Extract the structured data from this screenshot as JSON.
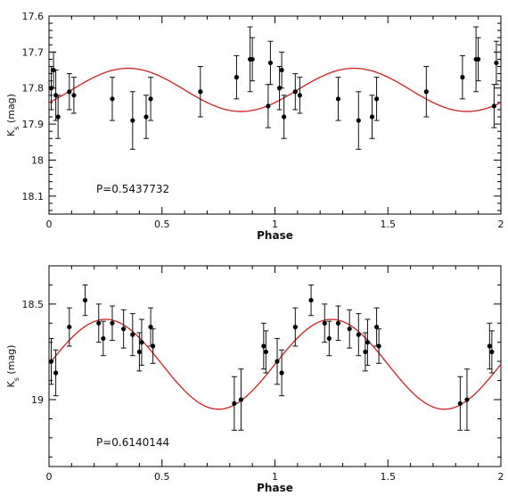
{
  "chart_data": [
    {
      "type": "scatter",
      "annotation": "P=0.5437732",
      "xlabel": "Phase",
      "ylabel": "K_s (mag)",
      "ylabel_main": "K",
      "ylabel_sub": "s",
      "ylabel_unit": " (mag)",
      "xlim": [
        0,
        2
      ],
      "ylim": [
        17.6,
        18.15
      ],
      "y_inverted": true,
      "x_ticks": [
        "0",
        "0.5",
        "1",
        "1.5",
        "2"
      ],
      "y_ticks": [
        "17.6",
        "17.7",
        "17.8",
        "17.9",
        "18",
        "18.1"
      ],
      "fit_curve": {
        "mean": 17.805,
        "amplitude": 0.06,
        "phase_of_minimum": 0.85,
        "color": "#cc2222"
      },
      "series": [
        {
          "points": [
            {
              "x": 0.01,
              "y": 17.8,
              "err": 0.06
            },
            {
              "x": 0.02,
              "y": 17.75,
              "err": 0.05
            },
            {
              "x": 0.03,
              "y": 17.82,
              "err": 0.07
            },
            {
              "x": 0.04,
              "y": 17.88,
              "err": 0.06
            },
            {
              "x": 0.09,
              "y": 17.81,
              "err": 0.05
            },
            {
              "x": 0.11,
              "y": 17.82,
              "err": 0.05
            },
            {
              "x": 0.28,
              "y": 17.83,
              "err": 0.06
            },
            {
              "x": 0.37,
              "y": 17.89,
              "err": 0.08
            },
            {
              "x": 0.43,
              "y": 17.88,
              "err": 0.06
            },
            {
              "x": 0.45,
              "y": 17.83,
              "err": 0.06
            },
            {
              "x": 0.67,
              "y": 17.81,
              "err": 0.07
            },
            {
              "x": 0.83,
              "y": 17.77,
              "err": 0.06
            },
            {
              "x": 0.89,
              "y": 17.72,
              "err": 0.09
            },
            {
              "x": 0.9,
              "y": 17.72,
              "err": 0.06
            },
            {
              "x": 0.97,
              "y": 17.85,
              "err": 0.06
            },
            {
              "x": 0.98,
              "y": 17.73,
              "err": 0.06
            },
            {
              "x": 1.02,
              "y": 17.8,
              "err": 0.06
            },
            {
              "x": 1.03,
              "y": 17.75,
              "err": 0.05
            },
            {
              "x": 1.04,
              "y": 17.88,
              "err": 0.06
            },
            {
              "x": 1.09,
              "y": 17.81,
              "err": 0.05
            },
            {
              "x": 1.11,
              "y": 17.82,
              "err": 0.05
            },
            {
              "x": 1.28,
              "y": 17.83,
              "err": 0.06
            },
            {
              "x": 1.37,
              "y": 17.89,
              "err": 0.08
            },
            {
              "x": 1.43,
              "y": 17.88,
              "err": 0.06
            },
            {
              "x": 1.45,
              "y": 17.83,
              "err": 0.06
            },
            {
              "x": 1.67,
              "y": 17.81,
              "err": 0.07
            },
            {
              "x": 1.83,
              "y": 17.77,
              "err": 0.06
            },
            {
              "x": 1.89,
              "y": 17.72,
              "err": 0.09
            },
            {
              "x": 1.9,
              "y": 17.72,
              "err": 0.06
            },
            {
              "x": 1.97,
              "y": 17.85,
              "err": 0.06
            },
            {
              "x": 1.98,
              "y": 17.73,
              "err": 0.06
            }
          ]
        }
      ]
    },
    {
      "type": "scatter",
      "annotation": "P=0.6140144",
      "xlabel": "Phase",
      "ylabel": "K_s (mag)",
      "ylabel_main": "K",
      "ylabel_sub": "s",
      "ylabel_unit": " (mag)",
      "xlim": [
        0,
        2
      ],
      "ylim": [
        18.3,
        19.35
      ],
      "y_inverted": true,
      "x_ticks": [
        "0",
        "0.5",
        "1",
        "1.5",
        "2"
      ],
      "y_ticks": [
        "18.5",
        "19"
      ],
      "fit_curve": {
        "mean": 18.815,
        "amplitude": 0.235,
        "phase_of_minimum": 0.75,
        "color": "#cc2222"
      },
      "series": [
        {
          "points": [
            {
              "x": 0.01,
              "y": 18.8,
              "err": 0.12
            },
            {
              "x": 0.03,
              "y": 18.86,
              "err": 0.12
            },
            {
              "x": 0.09,
              "y": 18.62,
              "err": 0.1
            },
            {
              "x": 0.16,
              "y": 18.48,
              "err": 0.08
            },
            {
              "x": 0.22,
              "y": 18.6,
              "err": 0.1
            },
            {
              "x": 0.24,
              "y": 18.68,
              "err": 0.09
            },
            {
              "x": 0.28,
              "y": 18.6,
              "err": 0.09
            },
            {
              "x": 0.33,
              "y": 18.63,
              "err": 0.1
            },
            {
              "x": 0.37,
              "y": 18.66,
              "err": 0.11
            },
            {
              "x": 0.4,
              "y": 18.75,
              "err": 0.1
            },
            {
              "x": 0.41,
              "y": 18.7,
              "err": 0.12
            },
            {
              "x": 0.45,
              "y": 18.62,
              "err": 0.1
            },
            {
              "x": 0.46,
              "y": 18.72,
              "err": 0.09
            },
            {
              "x": 0.82,
              "y": 19.02,
              "err": 0.14
            },
            {
              "x": 0.85,
              "y": 19.0,
              "err": 0.16
            },
            {
              "x": 0.95,
              "y": 18.72,
              "err": 0.12
            },
            {
              "x": 0.96,
              "y": 18.75,
              "err": 0.11
            },
            {
              "x": 1.01,
              "y": 18.8,
              "err": 0.12
            },
            {
              "x": 1.03,
              "y": 18.86,
              "err": 0.12
            },
            {
              "x": 1.09,
              "y": 18.62,
              "err": 0.1
            },
            {
              "x": 1.16,
              "y": 18.48,
              "err": 0.08
            },
            {
              "x": 1.22,
              "y": 18.6,
              "err": 0.1
            },
            {
              "x": 1.24,
              "y": 18.68,
              "err": 0.09
            },
            {
              "x": 1.28,
              "y": 18.6,
              "err": 0.09
            },
            {
              "x": 1.33,
              "y": 18.63,
              "err": 0.1
            },
            {
              "x": 1.37,
              "y": 18.66,
              "err": 0.11
            },
            {
              "x": 1.4,
              "y": 18.75,
              "err": 0.1
            },
            {
              "x": 1.41,
              "y": 18.7,
              "err": 0.12
            },
            {
              "x": 1.45,
              "y": 18.62,
              "err": 0.1
            },
            {
              "x": 1.46,
              "y": 18.72,
              "err": 0.09
            },
            {
              "x": 1.82,
              "y": 19.02,
              "err": 0.14
            },
            {
              "x": 1.85,
              "y": 19.0,
              "err": 0.16
            },
            {
              "x": 1.95,
              "y": 18.72,
              "err": 0.12
            },
            {
              "x": 1.96,
              "y": 18.75,
              "err": 0.11
            }
          ]
        }
      ]
    }
  ]
}
